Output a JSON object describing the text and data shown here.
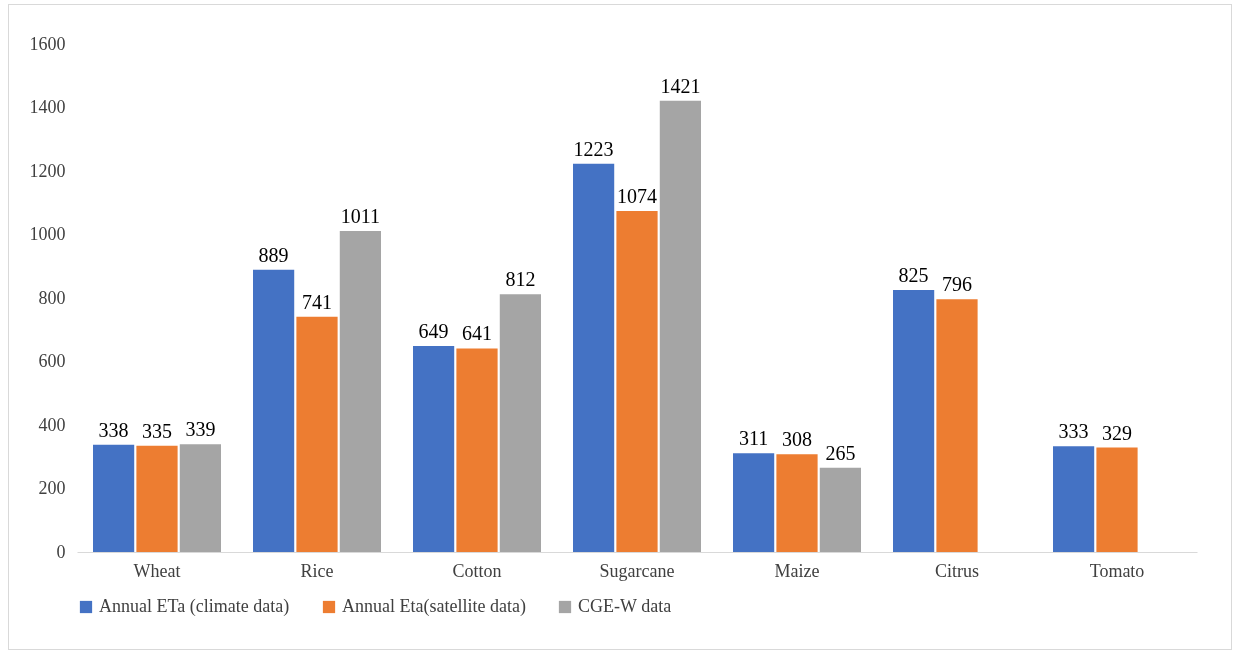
{
  "chart_data": {
    "type": "bar",
    "categories": [
      "Wheat",
      "Rice",
      "Cotton",
      "Sugarcane",
      "Maize",
      "Citrus",
      "Tomato"
    ],
    "series": [
      {
        "name": "Annual ETa (climate data)",
        "color": "#4472c4",
        "values": [
          338,
          889,
          649,
          1223,
          311,
          825,
          333
        ]
      },
      {
        "name": "Annual Eta(satellite data)",
        "color": "#ed7d31",
        "values": [
          335,
          741,
          641,
          1074,
          308,
          796,
          329
        ]
      },
      {
        "name": "CGE-W data",
        "color": "#a5a5a5",
        "values": [
          339,
          1011,
          812,
          1421,
          265,
          null,
          null
        ]
      }
    ],
    "ylim": [
      0,
      1600
    ],
    "yticks": [
      0,
      200,
      400,
      600,
      800,
      1000,
      1200,
      1400,
      1600
    ],
    "grid": false,
    "legend": "bottom",
    "data_labels": true
  }
}
